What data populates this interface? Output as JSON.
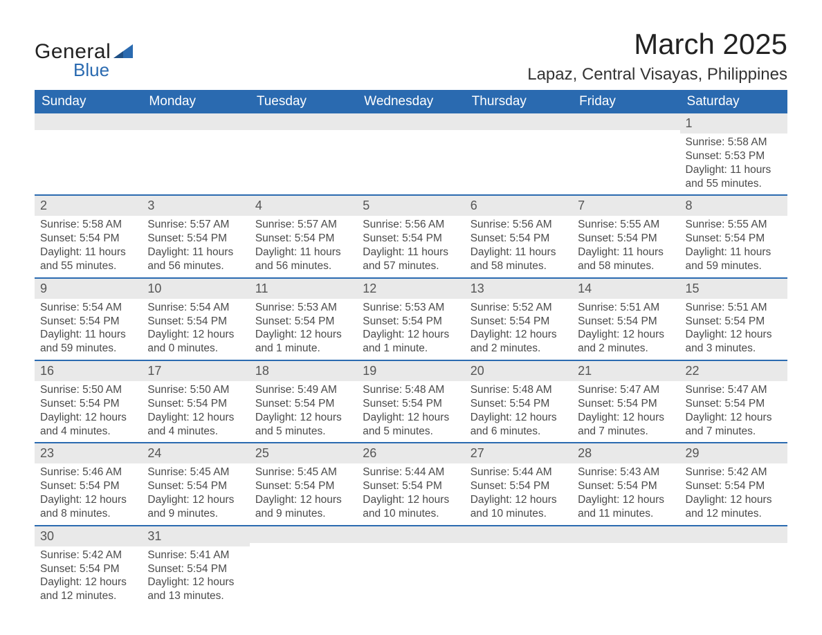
{
  "logo": {
    "word1": "General",
    "word2": "Blue"
  },
  "title": "March 2025",
  "location": "Lapaz, Central Visayas, Philippines",
  "colors": {
    "header_bg": "#2a6ab0",
    "header_text": "#ffffff",
    "daynum_bg": "#e9e9e9",
    "row_divider": "#2a6ab0",
    "body_text": "#4a4a4a",
    "logo_blue": "#2a6ab0"
  },
  "typography": {
    "title_fontsize_pt": 32,
    "location_fontsize_pt": 18,
    "header_fontsize_pt": 14,
    "cell_fontsize_pt": 12,
    "font_family": "Arial"
  },
  "day_headers": [
    "Sunday",
    "Monday",
    "Tuesday",
    "Wednesday",
    "Thursday",
    "Friday",
    "Saturday"
  ],
  "weeks": [
    [
      {
        "n": "",
        "sr": "",
        "ss": "",
        "dl": ""
      },
      {
        "n": "",
        "sr": "",
        "ss": "",
        "dl": ""
      },
      {
        "n": "",
        "sr": "",
        "ss": "",
        "dl": ""
      },
      {
        "n": "",
        "sr": "",
        "ss": "",
        "dl": ""
      },
      {
        "n": "",
        "sr": "",
        "ss": "",
        "dl": ""
      },
      {
        "n": "",
        "sr": "",
        "ss": "",
        "dl": ""
      },
      {
        "n": "1",
        "sr": "Sunrise: 5:58 AM",
        "ss": "Sunset: 5:53 PM",
        "dl": "Daylight: 11 hours and 55 minutes."
      }
    ],
    [
      {
        "n": "2",
        "sr": "Sunrise: 5:58 AM",
        "ss": "Sunset: 5:54 PM",
        "dl": "Daylight: 11 hours and 55 minutes."
      },
      {
        "n": "3",
        "sr": "Sunrise: 5:57 AM",
        "ss": "Sunset: 5:54 PM",
        "dl": "Daylight: 11 hours and 56 minutes."
      },
      {
        "n": "4",
        "sr": "Sunrise: 5:57 AM",
        "ss": "Sunset: 5:54 PM",
        "dl": "Daylight: 11 hours and 56 minutes."
      },
      {
        "n": "5",
        "sr": "Sunrise: 5:56 AM",
        "ss": "Sunset: 5:54 PM",
        "dl": "Daylight: 11 hours and 57 minutes."
      },
      {
        "n": "6",
        "sr": "Sunrise: 5:56 AM",
        "ss": "Sunset: 5:54 PM",
        "dl": "Daylight: 11 hours and 58 minutes."
      },
      {
        "n": "7",
        "sr": "Sunrise: 5:55 AM",
        "ss": "Sunset: 5:54 PM",
        "dl": "Daylight: 11 hours and 58 minutes."
      },
      {
        "n": "8",
        "sr": "Sunrise: 5:55 AM",
        "ss": "Sunset: 5:54 PM",
        "dl": "Daylight: 11 hours and 59 minutes."
      }
    ],
    [
      {
        "n": "9",
        "sr": "Sunrise: 5:54 AM",
        "ss": "Sunset: 5:54 PM",
        "dl": "Daylight: 11 hours and 59 minutes."
      },
      {
        "n": "10",
        "sr": "Sunrise: 5:54 AM",
        "ss": "Sunset: 5:54 PM",
        "dl": "Daylight: 12 hours and 0 minutes."
      },
      {
        "n": "11",
        "sr": "Sunrise: 5:53 AM",
        "ss": "Sunset: 5:54 PM",
        "dl": "Daylight: 12 hours and 1 minute."
      },
      {
        "n": "12",
        "sr": "Sunrise: 5:53 AM",
        "ss": "Sunset: 5:54 PM",
        "dl": "Daylight: 12 hours and 1 minute."
      },
      {
        "n": "13",
        "sr": "Sunrise: 5:52 AM",
        "ss": "Sunset: 5:54 PM",
        "dl": "Daylight: 12 hours and 2 minutes."
      },
      {
        "n": "14",
        "sr": "Sunrise: 5:51 AM",
        "ss": "Sunset: 5:54 PM",
        "dl": "Daylight: 12 hours and 2 minutes."
      },
      {
        "n": "15",
        "sr": "Sunrise: 5:51 AM",
        "ss": "Sunset: 5:54 PM",
        "dl": "Daylight: 12 hours and 3 minutes."
      }
    ],
    [
      {
        "n": "16",
        "sr": "Sunrise: 5:50 AM",
        "ss": "Sunset: 5:54 PM",
        "dl": "Daylight: 12 hours and 4 minutes."
      },
      {
        "n": "17",
        "sr": "Sunrise: 5:50 AM",
        "ss": "Sunset: 5:54 PM",
        "dl": "Daylight: 12 hours and 4 minutes."
      },
      {
        "n": "18",
        "sr": "Sunrise: 5:49 AM",
        "ss": "Sunset: 5:54 PM",
        "dl": "Daylight: 12 hours and 5 minutes."
      },
      {
        "n": "19",
        "sr": "Sunrise: 5:48 AM",
        "ss": "Sunset: 5:54 PM",
        "dl": "Daylight: 12 hours and 5 minutes."
      },
      {
        "n": "20",
        "sr": "Sunrise: 5:48 AM",
        "ss": "Sunset: 5:54 PM",
        "dl": "Daylight: 12 hours and 6 minutes."
      },
      {
        "n": "21",
        "sr": "Sunrise: 5:47 AM",
        "ss": "Sunset: 5:54 PM",
        "dl": "Daylight: 12 hours and 7 minutes."
      },
      {
        "n": "22",
        "sr": "Sunrise: 5:47 AM",
        "ss": "Sunset: 5:54 PM",
        "dl": "Daylight: 12 hours and 7 minutes."
      }
    ],
    [
      {
        "n": "23",
        "sr": "Sunrise: 5:46 AM",
        "ss": "Sunset: 5:54 PM",
        "dl": "Daylight: 12 hours and 8 minutes."
      },
      {
        "n": "24",
        "sr": "Sunrise: 5:45 AM",
        "ss": "Sunset: 5:54 PM",
        "dl": "Daylight: 12 hours and 9 minutes."
      },
      {
        "n": "25",
        "sr": "Sunrise: 5:45 AM",
        "ss": "Sunset: 5:54 PM",
        "dl": "Daylight: 12 hours and 9 minutes."
      },
      {
        "n": "26",
        "sr": "Sunrise: 5:44 AM",
        "ss": "Sunset: 5:54 PM",
        "dl": "Daylight: 12 hours and 10 minutes."
      },
      {
        "n": "27",
        "sr": "Sunrise: 5:44 AM",
        "ss": "Sunset: 5:54 PM",
        "dl": "Daylight: 12 hours and 10 minutes."
      },
      {
        "n": "28",
        "sr": "Sunrise: 5:43 AM",
        "ss": "Sunset: 5:54 PM",
        "dl": "Daylight: 12 hours and 11 minutes."
      },
      {
        "n": "29",
        "sr": "Sunrise: 5:42 AM",
        "ss": "Sunset: 5:54 PM",
        "dl": "Daylight: 12 hours and 12 minutes."
      }
    ],
    [
      {
        "n": "30",
        "sr": "Sunrise: 5:42 AM",
        "ss": "Sunset: 5:54 PM",
        "dl": "Daylight: 12 hours and 12 minutes."
      },
      {
        "n": "31",
        "sr": "Sunrise: 5:41 AM",
        "ss": "Sunset: 5:54 PM",
        "dl": "Daylight: 12 hours and 13 minutes."
      },
      {
        "n": "",
        "sr": "",
        "ss": "",
        "dl": ""
      },
      {
        "n": "",
        "sr": "",
        "ss": "",
        "dl": ""
      },
      {
        "n": "",
        "sr": "",
        "ss": "",
        "dl": ""
      },
      {
        "n": "",
        "sr": "",
        "ss": "",
        "dl": ""
      },
      {
        "n": "",
        "sr": "",
        "ss": "",
        "dl": ""
      }
    ]
  ]
}
